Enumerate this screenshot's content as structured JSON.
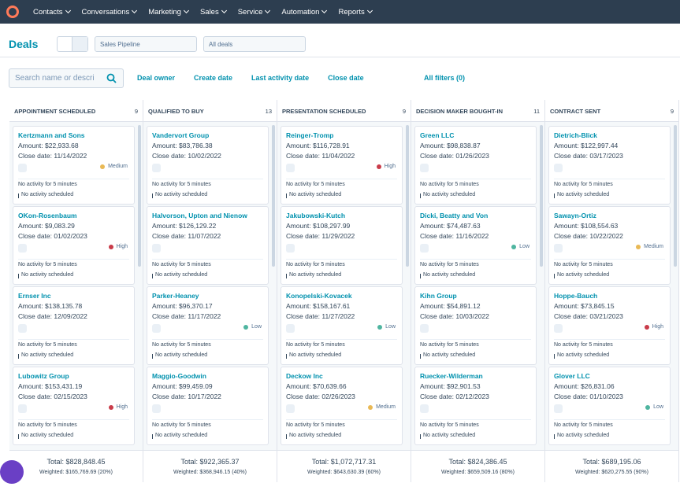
{
  "nav": {
    "items": [
      "Contacts",
      "Conversations",
      "Marketing",
      "Sales",
      "Service",
      "Automation",
      "Reports"
    ]
  },
  "toolbar": {
    "title": "Deals",
    "pipeline": "Sales Pipeline",
    "view": "All deals"
  },
  "filters": {
    "search": "Search name or descri",
    "buttons": [
      "Deal owner",
      "Create date",
      "Last activity date",
      "Close date"
    ],
    "all_filters": "All filters (0)"
  },
  "columns": [
    {
      "name": "APPOINTMENT SCHEDULED",
      "count": 9,
      "total": "Total: $828,848.45",
      "weighted": "Weighted: $165,769.69 (20%)",
      "cards": [
        {
          "name": "Kertzmann and Sons",
          "amount": "Amount: $22,933.68",
          "close": "Close date: 11/14/2022",
          "priority": {
            "label": "Medium",
            "color": "#e9b955"
          },
          "activity": "No activity for 5 minutes",
          "scheduled": "No activity scheduled"
        },
        {
          "name": "OKon-Rosenbaum",
          "amount": "Amount: $9,083.29",
          "close": "Close date: 01/02/2023",
          "priority": {
            "label": "High",
            "color": "#c93c4a"
          },
          "activity": "No activity for 5 minutes",
          "scheduled": "No activity scheduled"
        },
        {
          "name": "Ernser Inc",
          "amount": "Amount: $138,135.78",
          "close": "Close date: 12/09/2022",
          "activity": "No activity for 5 minutes",
          "scheduled": "No activity scheduled"
        },
        {
          "name": "Lubowitz Group",
          "amount": "Amount: $153,431.19",
          "close": "Close date: 02/15/2023",
          "priority": {
            "label": "High",
            "color": "#c93c4a"
          },
          "activity": "No activity for 5 minutes",
          "scheduled": "No activity scheduled"
        }
      ]
    },
    {
      "name": "QUALIFIED TO BUY",
      "count": 13,
      "total": "Total: $922,365.37",
      "weighted": "Weighted: $368,946.15 (40%)",
      "cards": [
        {
          "name": "Vandervort Group",
          "amount": "Amount: $83,786.38",
          "close": "Close date: 10/02/2022",
          "activity": "No activity for 5 minutes",
          "scheduled": "No activity scheduled"
        },
        {
          "name": "Halvorson, Upton and Nienow",
          "amount": "Amount: $126,129.22",
          "close": "Close date: 11/07/2022",
          "activity": "No activity for 5 minutes",
          "scheduled": "No activity scheduled"
        },
        {
          "name": "Parker-Heaney",
          "amount": "Amount: $96,370.17",
          "close": "Close date: 11/17/2022",
          "priority": {
            "label": "Low",
            "color": "#4fb5a0"
          },
          "activity": "No activity for 5 minutes",
          "scheduled": "No activity scheduled"
        },
        {
          "name": "Maggio-Goodwin",
          "amount": "Amount: $99,459.09",
          "close": "Close date: 10/17/2022",
          "activity": "No activity for 5 minutes",
          "scheduled": "No activity scheduled"
        }
      ]
    },
    {
      "name": "PRESENTATION SCHEDULED",
      "count": 9,
      "total": "Total: $1,072,717.31",
      "weighted": "Weighted: $643,630.39 (60%)",
      "cards": [
        {
          "name": "Reinger-Tromp",
          "amount": "Amount: $116,728.91",
          "close": "Close date: 11/04/2022",
          "priority": {
            "label": "High",
            "color": "#c93c4a"
          },
          "activity": "No activity for 5 minutes",
          "scheduled": "No activity scheduled"
        },
        {
          "name": "Jakubowski-Kutch",
          "amount": "Amount: $108,297.99",
          "close": "Close date: 11/29/2022",
          "activity": "No activity for 5 minutes",
          "scheduled": "No activity scheduled"
        },
        {
          "name": "Konopelski-Kovacek",
          "amount": "Amount: $158,167.61",
          "close": "Close date: 11/27/2022",
          "priority": {
            "label": "Low",
            "color": "#4fb5a0"
          },
          "activity": "No activity for 5 minutes",
          "scheduled": "No activity scheduled"
        },
        {
          "name": "Deckow Inc",
          "amount": "Amount: $70,639.66",
          "close": "Close date: 02/26/2023",
          "priority": {
            "label": "Medium",
            "color": "#e9b955"
          },
          "activity": "No activity for 5 minutes",
          "scheduled": "No activity scheduled"
        }
      ]
    },
    {
      "name": "DECISION MAKER BOUGHT-IN",
      "count": 11,
      "total": "Total: $824,386.45",
      "weighted": "Weighted: $659,509.16 (80%)",
      "cards": [
        {
          "name": "Green LLC",
          "amount": "Amount: $98,838.87",
          "close": "Close date: 01/26/2023",
          "activity": "No activity for 5 minutes",
          "scheduled": "No activity scheduled"
        },
        {
          "name": "Dicki, Beatty and Von",
          "amount": "Amount: $74,487.63",
          "close": "Close date: 11/16/2022",
          "priority": {
            "label": "Low",
            "color": "#4fb5a0"
          },
          "activity": "No activity for 5 minutes",
          "scheduled": "No activity scheduled"
        },
        {
          "name": "Kihn Group",
          "amount": "Amount: $54,891.12",
          "close": "Close date: 10/03/2022",
          "activity": "No activity for 5 minutes",
          "scheduled": "No activity scheduled"
        },
        {
          "name": "Ruecker-Wilderman",
          "amount": "Amount: $92,901.53",
          "close": "Close date: 02/12/2023",
          "activity": "No activity for 5 minutes",
          "scheduled": "No activity scheduled"
        }
      ]
    },
    {
      "name": "CONTRACT SENT",
      "count": 9,
      "total": "Total: $689,195.06",
      "weighted": "Weighted: $620,275.55 (90%)",
      "cards": [
        {
          "name": "Dietrich-Blick",
          "amount": "Amount: $122,997.44",
          "close": "Close date: 03/17/2023",
          "activity": "No activity for 5 minutes",
          "scheduled": "No activity scheduled"
        },
        {
          "name": "Sawayn-Ortiz",
          "amount": "Amount: $108,554.63",
          "close": "Close date: 10/22/2022",
          "priority": {
            "label": "Medium",
            "color": "#e9b955"
          },
          "activity": "No activity for 5 minutes",
          "scheduled": "No activity scheduled"
        },
        {
          "name": "Hoppe-Bauch",
          "amount": "Amount: $73,845.15",
          "close": "Close date: 03/21/2023",
          "priority": {
            "label": "High",
            "color": "#c93c4a"
          },
          "activity": "No activity for 5 minutes",
          "scheduled": "No activity scheduled"
        },
        {
          "name": "Glover LLC",
          "amount": "Amount: $26,831.06",
          "close": "Close date: 01/10/2023",
          "priority": {
            "label": "Low",
            "color": "#4fb5a0"
          },
          "activity": "No activity for 5 minutes",
          "scheduled": "No activity scheduled"
        }
      ]
    }
  ]
}
